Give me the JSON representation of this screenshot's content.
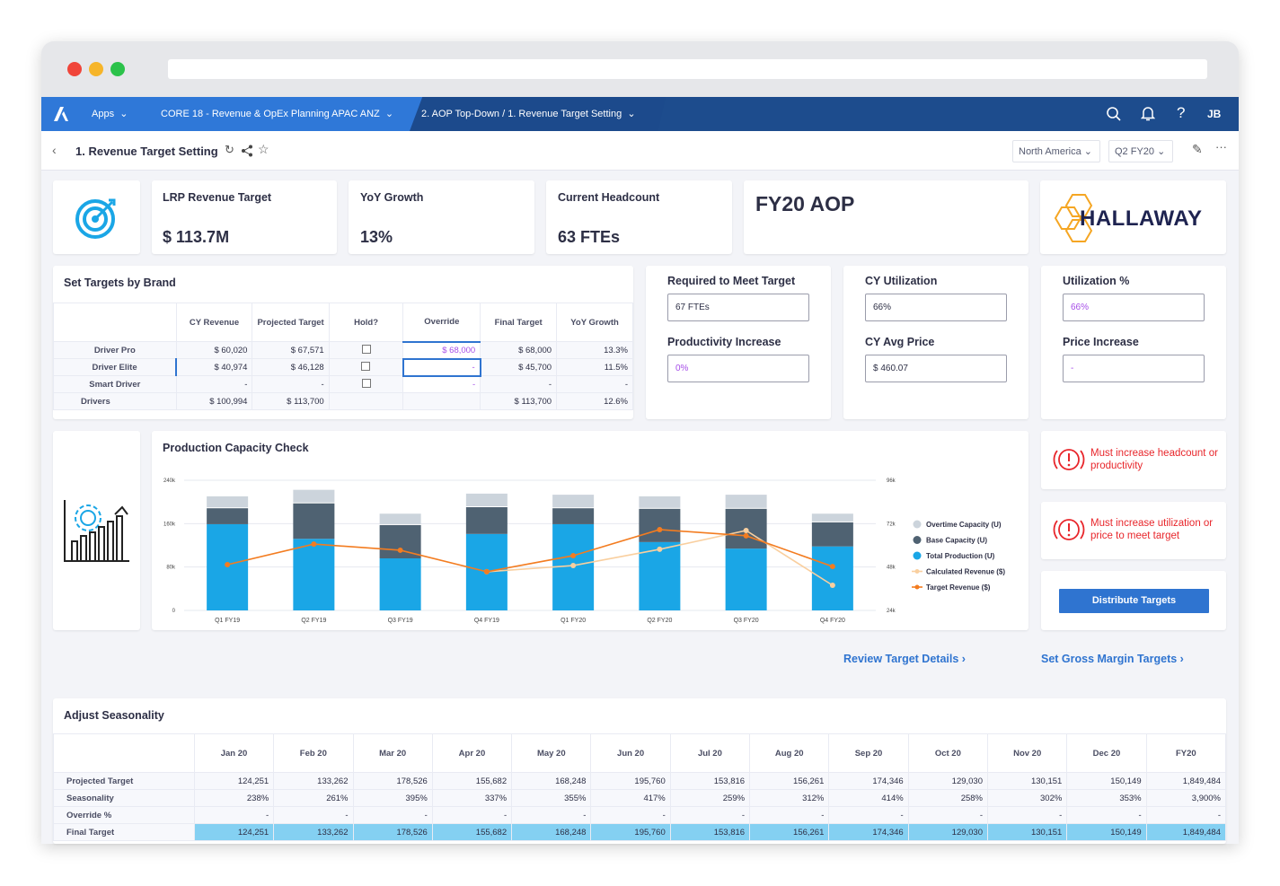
{
  "nav": {
    "apps": "Apps",
    "model": "CORE 18 - Revenue & OpEx Planning APAC ANZ",
    "page": "2. AOP Top-Down / 1. Revenue Target Setting",
    "user_initials": "JB",
    "icons": [
      "search-icon",
      "bell-icon",
      "help-icon"
    ]
  },
  "subheader": {
    "title": "1. Revenue Target Setting",
    "region": "North America",
    "period": "Q2 FY20"
  },
  "kpis": {
    "lrp_label": "LRP Revenue Target",
    "lrp_value": "$ 113.7M",
    "yoy_label": "YoY Growth",
    "yoy_value": "13%",
    "hc_label": "Current Headcount",
    "hc_value": "63 FTEs",
    "aop": "FY20 AOP",
    "logo": "HALLAWAY"
  },
  "brand_table": {
    "title": "Set Targets by Brand",
    "columns": [
      "CY Revenue",
      "Projected Target",
      "Hold?",
      "Override",
      "Final Target",
      "YoY Growth"
    ],
    "rows": [
      {
        "label": "Driver Pro",
        "cy": "$ 60,020",
        "proj": "$ 67,571",
        "override": "$ 68,000",
        "final": "$ 68,000",
        "yoy": "13.3%"
      },
      {
        "label": "Driver Elite",
        "cy": "$ 40,974",
        "proj": "$ 46,128",
        "override": "-",
        "final": "$ 45,700",
        "yoy": "11.5%"
      },
      {
        "label": "Smart Driver",
        "cy": "-",
        "proj": "-",
        "override": "-",
        "final": "-",
        "yoy": "-"
      }
    ],
    "total": {
      "label": "Drivers",
      "cy": "$ 100,994",
      "proj": "$ 113,700",
      "final": "$ 113,700",
      "yoy": "12.6%"
    }
  },
  "fields": {
    "req_label": "Required to Meet Target",
    "req_value": "67 FTEs",
    "prod_label": "Productivity Increase",
    "prod_value": "0%",
    "cyu_label": "CY Utilization",
    "cyu_value": "66%",
    "cyp_label": "CY Avg Price",
    "cyp_value": "$ 460.07",
    "util_label": "Utilization %",
    "util_value": "66%",
    "price_label": "Price Increase",
    "price_value": "-"
  },
  "alerts": [
    "Must increase headcount or productivity",
    "Must increase utilization or price to meet target"
  ],
  "distribute_button": "Distribute Targets",
  "links": {
    "review": "Review Target Details",
    "gross_margin": "Set Gross Margin Targets"
  },
  "chart_data": {
    "type": "bar",
    "title": "Production Capacity Check",
    "categories": [
      "Q1 FY19",
      "Q2 FY19",
      "Q3 FY19",
      "Q4 FY19",
      "Q1 FY20",
      "Q2 FY20",
      "Q3 FY20",
      "Q4 FY20"
    ],
    "left_axis": {
      "ticks": [
        "0",
        "80k",
        "160k",
        "240k"
      ],
      "range": [
        0,
        240000
      ]
    },
    "right_axis": {
      "ticks": [
        "24k",
        "48k",
        "72k",
        "96k"
      ],
      "range": [
        24000,
        96000
      ]
    },
    "stacked_series": [
      {
        "name": "Total Production (U)",
        "color": "#1aa6e6",
        "values": [
          159000,
          132000,
          96000,
          141000,
          159000,
          126000,
          114000,
          118000
        ]
      },
      {
        "name": "Base Capacity (U)",
        "color": "#4f6272",
        "values": [
          31000,
          67000,
          63000,
          51000,
          31000,
          63000,
          75000,
          46000
        ]
      },
      {
        "name": "Overtime Capacity (U)",
        "color": "#ccd4dc",
        "values": [
          22000,
          25000,
          21000,
          25000,
          25000,
          23000,
          26000,
          16000
        ]
      }
    ],
    "line_series": [
      {
        "name": "Calculated Revenue ($)",
        "color": "#f9cf9f",
        "values": [
          null,
          null,
          null,
          45400,
          48800,
          57800,
          68200,
          37900
        ]
      },
      {
        "name": "Target Revenue ($)",
        "color": "#f37c20",
        "values": [
          49300,
          60700,
          57300,
          45400,
          54300,
          68700,
          65300,
          48300
        ]
      }
    ],
    "legend": [
      "Overtime Capacity (U)",
      "Base Capacity (U)",
      "Total Production (U)",
      "Calculated Revenue ($)",
      "Target Revenue ($)"
    ],
    "legend_position": "right",
    "grid": true
  },
  "seasonality": {
    "title": "Adjust Seasonality",
    "columns": [
      "Jan 20",
      "Feb 20",
      "Mar 20",
      "Apr 20",
      "May 20",
      "Jun 20",
      "Jul 20",
      "Aug 20",
      "Sep 20",
      "Oct 20",
      "Nov 20",
      "Dec 20",
      "FY20"
    ],
    "rows": [
      {
        "label": "Projected Target",
        "values": [
          "124,251",
          "133,262",
          "178,526",
          "155,682",
          "168,248",
          "195,760",
          "153,816",
          "156,261",
          "174,346",
          "129,030",
          "130,151",
          "150,149",
          "1,849,484"
        ]
      },
      {
        "label": "Seasonality",
        "values": [
          "238%",
          "261%",
          "395%",
          "337%",
          "355%",
          "417%",
          "259%",
          "312%",
          "414%",
          "258%",
          "302%",
          "353%",
          "3,900%"
        ]
      },
      {
        "label": "Override %",
        "values": [
          "-",
          "-",
          "-",
          "-",
          "-",
          "-",
          "-",
          "-",
          "-",
          "-",
          "-",
          "-",
          "-"
        ]
      },
      {
        "label": "Final Target",
        "values": [
          "124,251",
          "133,262",
          "178,526",
          "155,682",
          "168,248",
          "195,760",
          "153,816",
          "156,261",
          "174,346",
          "129,030",
          "130,151",
          "150,149",
          "1,849,484"
        ]
      }
    ]
  }
}
